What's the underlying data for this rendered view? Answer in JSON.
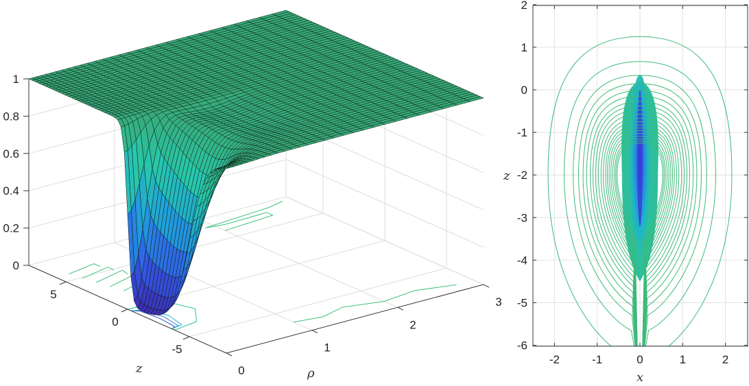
{
  "chart_data": [
    {
      "type": "surface",
      "xlabel": "ρ",
      "ylabel": "z",
      "zlabel": "",
      "xlim": [
        0,
        3
      ],
      "ylim": [
        -8,
        8
      ],
      "zlim": [
        0,
        1
      ],
      "xticks": [
        "0",
        "1",
        "2",
        "3"
      ],
      "yticks": [
        "5",
        "0",
        "-5"
      ],
      "zticks": [
        "0",
        "0.2",
        "0.4",
        "0.6",
        "0.8",
        "1"
      ],
      "grid": true,
      "colormap": [
        "#3e26a8",
        "#2f60e0",
        "#20b0d8",
        "#2cc4a0",
        "#36a77a"
      ],
      "edge_color": "#000000"
    },
    {
      "type": "contour",
      "xlabel": "x",
      "ylabel": "z",
      "xlim": [
        -2.5,
        2.5
      ],
      "ylim": [
        -6,
        2
      ],
      "xticks": [
        "-2",
        "-1",
        "0",
        "1",
        "2"
      ],
      "yticks": [
        "2",
        "1",
        "0",
        "-1",
        "-2",
        "-3",
        "-4",
        "-5",
        "-6"
      ],
      "grid": true,
      "line_color": "#3dba7a",
      "core_color": "#3a3ce0"
    }
  ]
}
